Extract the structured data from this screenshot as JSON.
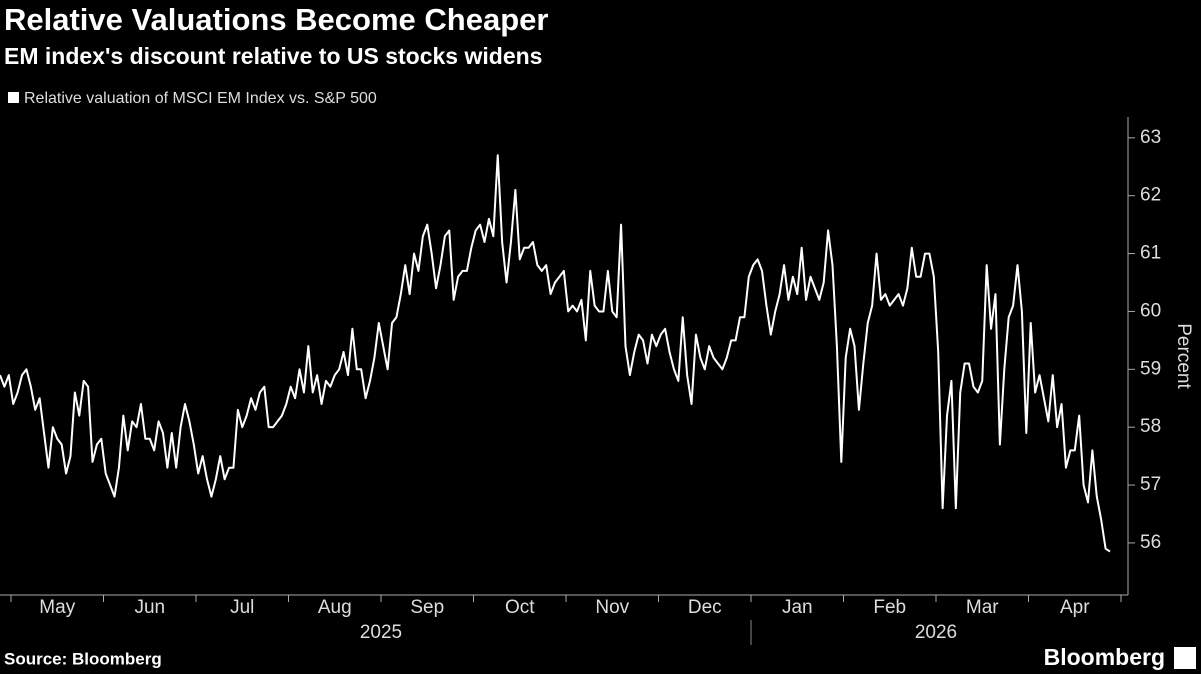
{
  "chart_data": {
    "type": "line",
    "title": "Relative Valuations Become Cheaper",
    "subtitle": "EM index's discount relative to US stocks widens",
    "y_axis_label": "Percent",
    "source": "Source: Bloomberg",
    "brand": "Bloomberg",
    "ylim": [
      55.1,
      63.36
    ],
    "yticks": [
      56,
      57,
      58,
      59,
      60,
      61,
      62,
      63
    ],
    "year_labels": [
      {
        "label": "2025",
        "span": 8
      },
      {
        "label": "2026",
        "span": 4
      }
    ],
    "categories": [
      null,
      null,
      null,
      null,
      null,
      null,
      null,
      null,
      null,
      null,
      null,
      null,
      null,
      "May",
      null,
      null,
      null,
      null,
      null,
      null,
      null,
      null,
      null,
      null,
      null,
      null,
      null,
      null,
      null,
      null,
      null,
      null,
      null,
      null,
      "Jun",
      null,
      null,
      null,
      null,
      null,
      null,
      null,
      null,
      null,
      null,
      null,
      null,
      null,
      null,
      null,
      null,
      null,
      null,
      null,
      null,
      "Jul",
      null,
      null,
      null,
      null,
      null,
      null,
      null,
      null,
      null,
      null,
      null,
      null,
      null,
      null,
      null,
      null,
      null,
      null,
      null,
      null,
      "Aug",
      null,
      null,
      null,
      null,
      null,
      null,
      null,
      null,
      null,
      null,
      null,
      null,
      null,
      null,
      null,
      null,
      null,
      null,
      null,
      null,
      "Sep",
      null,
      null,
      null,
      null,
      null,
      null,
      null,
      null,
      null,
      null,
      null,
      null,
      null,
      null,
      null,
      null,
      null,
      null,
      null,
      null,
      "Oct",
      null,
      null,
      null,
      null,
      null,
      null,
      null,
      null,
      null,
      null,
      null,
      null,
      null,
      null,
      null,
      null,
      null,
      null,
      null,
      null,
      "Nov",
      null,
      null,
      null,
      null,
      null,
      null,
      null,
      null,
      null,
      null,
      null,
      null,
      null,
      null,
      null,
      null,
      null,
      null,
      null,
      null,
      "Dec",
      null,
      null,
      null,
      null,
      null,
      null,
      null,
      null,
      null,
      null,
      null,
      null,
      null,
      null,
      null,
      null,
      null,
      null,
      null,
      null,
      "Jan",
      null,
      null,
      null,
      null,
      null,
      null,
      null,
      null,
      null,
      null,
      null,
      null,
      null,
      null,
      null,
      null,
      null,
      null,
      null,
      null,
      "Feb",
      null,
      null,
      null,
      null,
      null,
      null,
      null,
      null,
      null,
      null,
      null,
      null,
      null,
      null,
      null,
      null,
      null,
      null,
      null,
      null,
      "Mar",
      null,
      null,
      null,
      null,
      null,
      null,
      null,
      null,
      null,
      null,
      null,
      null,
      null,
      null,
      null,
      null,
      null,
      null,
      null,
      null,
      "Apr",
      null,
      null,
      null,
      null,
      null,
      null,
      null,
      null
    ],
    "series": [
      {
        "name": "Relative valuation of MSCI EM Index vs. S&P 500",
        "color": "#ffffff",
        "values": [
          58.9,
          58.7,
          58.9,
          58.4,
          58.6,
          58.9,
          59.0,
          58.7,
          58.3,
          58.5,
          57.9,
          57.3,
          58.0,
          57.8,
          57.7,
          57.2,
          57.5,
          58.6,
          58.2,
          58.8,
          58.7,
          57.4,
          57.7,
          57.8,
          57.2,
          57.0,
          56.8,
          57.3,
          58.2,
          57.6,
          58.1,
          58.0,
          58.4,
          57.8,
          57.8,
          57.6,
          58.1,
          57.9,
          57.3,
          57.9,
          57.3,
          58.0,
          58.4,
          58.1,
          57.7,
          57.2,
          57.5,
          57.1,
          56.8,
          57.1,
          57.5,
          57.1,
          57.3,
          57.3,
          58.3,
          58.0,
          58.2,
          58.5,
          58.3,
          58.6,
          58.7,
          58.0,
          58.0,
          58.1,
          58.2,
          58.4,
          58.7,
          58.5,
          59.0,
          58.6,
          59.4,
          58.6,
          58.9,
          58.4,
          58.8,
          58.7,
          58.9,
          59.0,
          59.3,
          58.9,
          59.7,
          59.0,
          59.0,
          58.5,
          58.8,
          59.2,
          59.8,
          59.4,
          59.0,
          59.8,
          59.9,
          60.3,
          60.8,
          60.3,
          61.0,
          60.7,
          61.3,
          61.5,
          61.0,
          60.4,
          60.8,
          61.3,
          61.4,
          60.2,
          60.6,
          60.7,
          60.7,
          61.1,
          61.4,
          61.5,
          61.2,
          61.6,
          61.3,
          62.7,
          61.2,
          60.5,
          61.2,
          62.1,
          60.9,
          61.1,
          61.1,
          61.2,
          60.8,
          60.7,
          60.8,
          60.3,
          60.5,
          60.6,
          60.7,
          60.0,
          60.1,
          60.0,
          60.2,
          59.5,
          60.7,
          60.1,
          60.0,
          60.0,
          60.7,
          60.0,
          59.9,
          61.5,
          59.4,
          58.9,
          59.3,
          59.6,
          59.5,
          59.1,
          59.6,
          59.4,
          59.6,
          59.7,
          59.3,
          59.0,
          58.8,
          59.9,
          58.9,
          58.4,
          59.6,
          59.2,
          59.0,
          59.4,
          59.2,
          59.1,
          59.0,
          59.2,
          59.5,
          59.5,
          59.9,
          59.9,
          60.6,
          60.8,
          60.9,
          60.7,
          60.1,
          59.6,
          60.0,
          60.3,
          60.8,
          60.2,
          60.6,
          60.3,
          61.1,
          60.2,
          60.6,
          60.4,
          60.2,
          60.5,
          61.4,
          60.8,
          59.4,
          57.4,
          59.2,
          59.7,
          59.4,
          58.3,
          59.1,
          59.8,
          60.1,
          61.0,
          60.2,
          60.3,
          60.1,
          60.2,
          60.3,
          60.1,
          60.4,
          61.1,
          60.6,
          60.6,
          61.0,
          61.0,
          60.6,
          59.3,
          56.6,
          58.2,
          58.8,
          56.6,
          58.6,
          59.1,
          59.1,
          58.7,
          58.6,
          58.8,
          60.8,
          59.7,
          60.3,
          57.7,
          59.0,
          59.9,
          60.1,
          60.8,
          60.0,
          57.9,
          59.8,
          58.6,
          58.9,
          58.5,
          58.1,
          58.9,
          58.0,
          58.4,
          57.3,
          57.6,
          57.6,
          58.2,
          57.0,
          56.7,
          57.6,
          56.8,
          56.4,
          55.9,
          55.85
        ]
      }
    ]
  }
}
